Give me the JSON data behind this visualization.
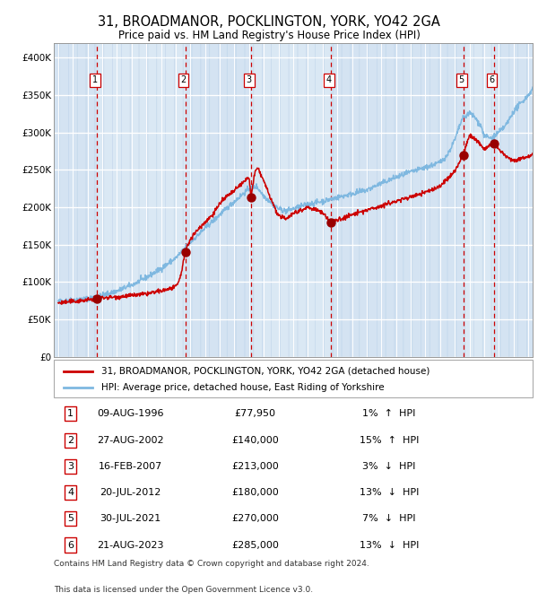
{
  "title1": "31, BROADMANOR, POCKLINGTON, YORK, YO42 2GA",
  "title2": "Price paid vs. HM Land Registry's House Price Index (HPI)",
  "ylim": [
    0,
    420000
  ],
  "yticks": [
    0,
    50000,
    100000,
    150000,
    200000,
    250000,
    300000,
    350000,
    400000
  ],
  "ytick_labels": [
    "£0",
    "£50K",
    "£100K",
    "£150K",
    "£200K",
    "£250K",
    "£300K",
    "£350K",
    "£400K"
  ],
  "xlim_start": 1993.7,
  "xlim_end": 2026.3,
  "sales": [
    {
      "num": 1,
      "year": 1996.62,
      "price": 77950,
      "date": "09-AUG-1996",
      "pct": "1%",
      "dir": "↑"
    },
    {
      "num": 2,
      "year": 2002.65,
      "price": 140000,
      "date": "27-AUG-2002",
      "pct": "15%",
      "dir": "↑"
    },
    {
      "num": 3,
      "year": 2007.12,
      "price": 213000,
      "date": "16-FEB-2007",
      "pct": "3%",
      "dir": "↓"
    },
    {
      "num": 4,
      "year": 2012.55,
      "price": 180000,
      "date": "20-JUL-2012",
      "pct": "13%",
      "dir": "↓"
    },
    {
      "num": 5,
      "year": 2021.58,
      "price": 270000,
      "date": "30-JUL-2021",
      "pct": "7%",
      "dir": "↓"
    },
    {
      "num": 6,
      "year": 2023.65,
      "price": 285000,
      "date": "21-AUG-2023",
      "pct": "13%",
      "dir": "↓"
    }
  ],
  "hpi_color": "#7fb8e0",
  "sale_color": "#cc0000",
  "sale_dot_color": "#990000",
  "dashed_line_color": "#cc0000",
  "legend_sale_label": "31, BROADMANOR, POCKLINGTON, YORK, YO42 2GA (detached house)",
  "legend_hpi_label": "HPI: Average price, detached house, East Riding of Yorkshire",
  "footer1": "Contains HM Land Registry data © Crown copyright and database right 2024.",
  "footer2": "This data is licensed under the Open Government Licence v3.0.",
  "plot_bg": "#dce8f4",
  "hatch_color": "#c5d8ec",
  "grid_color": "#ffffff"
}
